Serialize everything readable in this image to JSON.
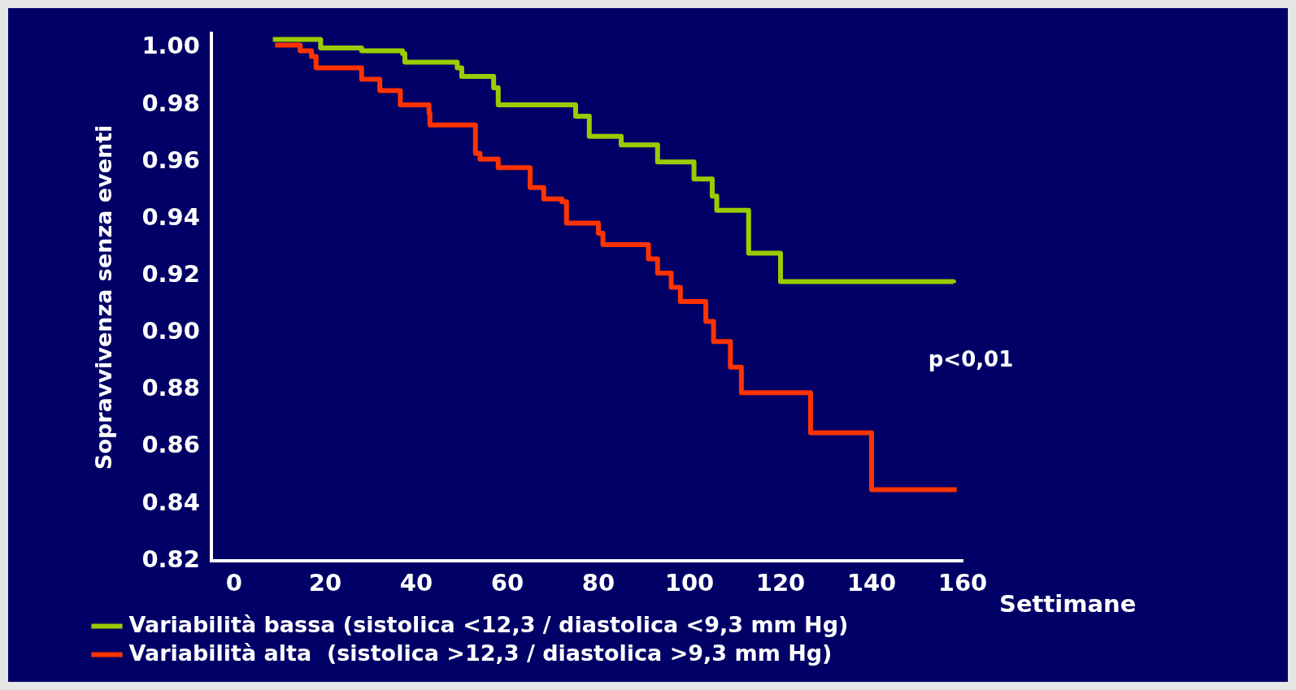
{
  "chart_data": {
    "type": "step",
    "ylabel": "Sopravvivenza senza eventi",
    "xlabel": "Settimane",
    "annotations": [
      "p<0,01"
    ],
    "xlim": [
      -5,
      160
    ],
    "xticks": [
      0,
      20,
      40,
      60,
      80,
      100,
      120,
      140,
      160
    ],
    "ylim": [
      0.82,
      1.005
    ],
    "yticks": [
      {
        "value": 0.82,
        "label": "0.82"
      },
      {
        "value": 0.84,
        "label": "0.84"
      },
      {
        "value": 0.86,
        "label": "0.86"
      },
      {
        "value": 0.88,
        "label": "0.88"
      },
      {
        "value": 0.9,
        "label": "0.90"
      },
      {
        "value": 0.92,
        "label": "0.92"
      },
      {
        "value": 0.94,
        "label": "0.94"
      },
      {
        "value": 0.96,
        "label": "0.96"
      },
      {
        "value": 0.98,
        "label": "0.98"
      },
      {
        "value": 1,
        "label": "1.00"
      }
    ],
    "legend": "bottom",
    "grid": false,
    "marker": "none",
    "line_style": "solid",
    "series": [
      {
        "name": "Variabilità bassa (sistolica <12,3 / diastolica <9,3 mm Hg)",
        "color": "#99cc00",
        "x": [
          8.5,
          19,
          28,
          37,
          37.5,
          49,
          50,
          57,
          58,
          75,
          78,
          85,
          93,
          101,
          105,
          106,
          113,
          120,
          158
        ],
        "values": [
          1.003,
          1.0,
          0.999,
          0.998,
          0.995,
          0.993,
          0.99,
          0.986,
          0.98,
          0.976,
          0.969,
          0.966,
          0.96,
          0.954,
          0.948,
          0.943,
          0.928,
          0.918,
          0.9175
        ]
      },
      {
        "name": "Variabilità alta  (sistolica >12,3 / diastolica >9,3 mm Hg)",
        "color": "#ff3300",
        "x": [
          9,
          14.5,
          17,
          18,
          28,
          32,
          36.5,
          42.8,
          43,
          53,
          54,
          58,
          65,
          68,
          72,
          73,
          80,
          81,
          91,
          93,
          96,
          98,
          103.6,
          105.3,
          109,
          111.4,
          126.6,
          140,
          158.7
        ],
        "values": [
          1.001,
          0.999,
          0.997,
          0.993,
          0.989,
          0.985,
          0.98,
          0.977,
          0.973,
          0.963,
          0.961,
          0.958,
          0.951,
          0.947,
          0.946,
          0.9385,
          0.935,
          0.931,
          0.926,
          0.921,
          0.916,
          0.911,
          0.904,
          0.897,
          0.888,
          0.879,
          0.865,
          0.845,
          0.845
        ]
      }
    ]
  }
}
